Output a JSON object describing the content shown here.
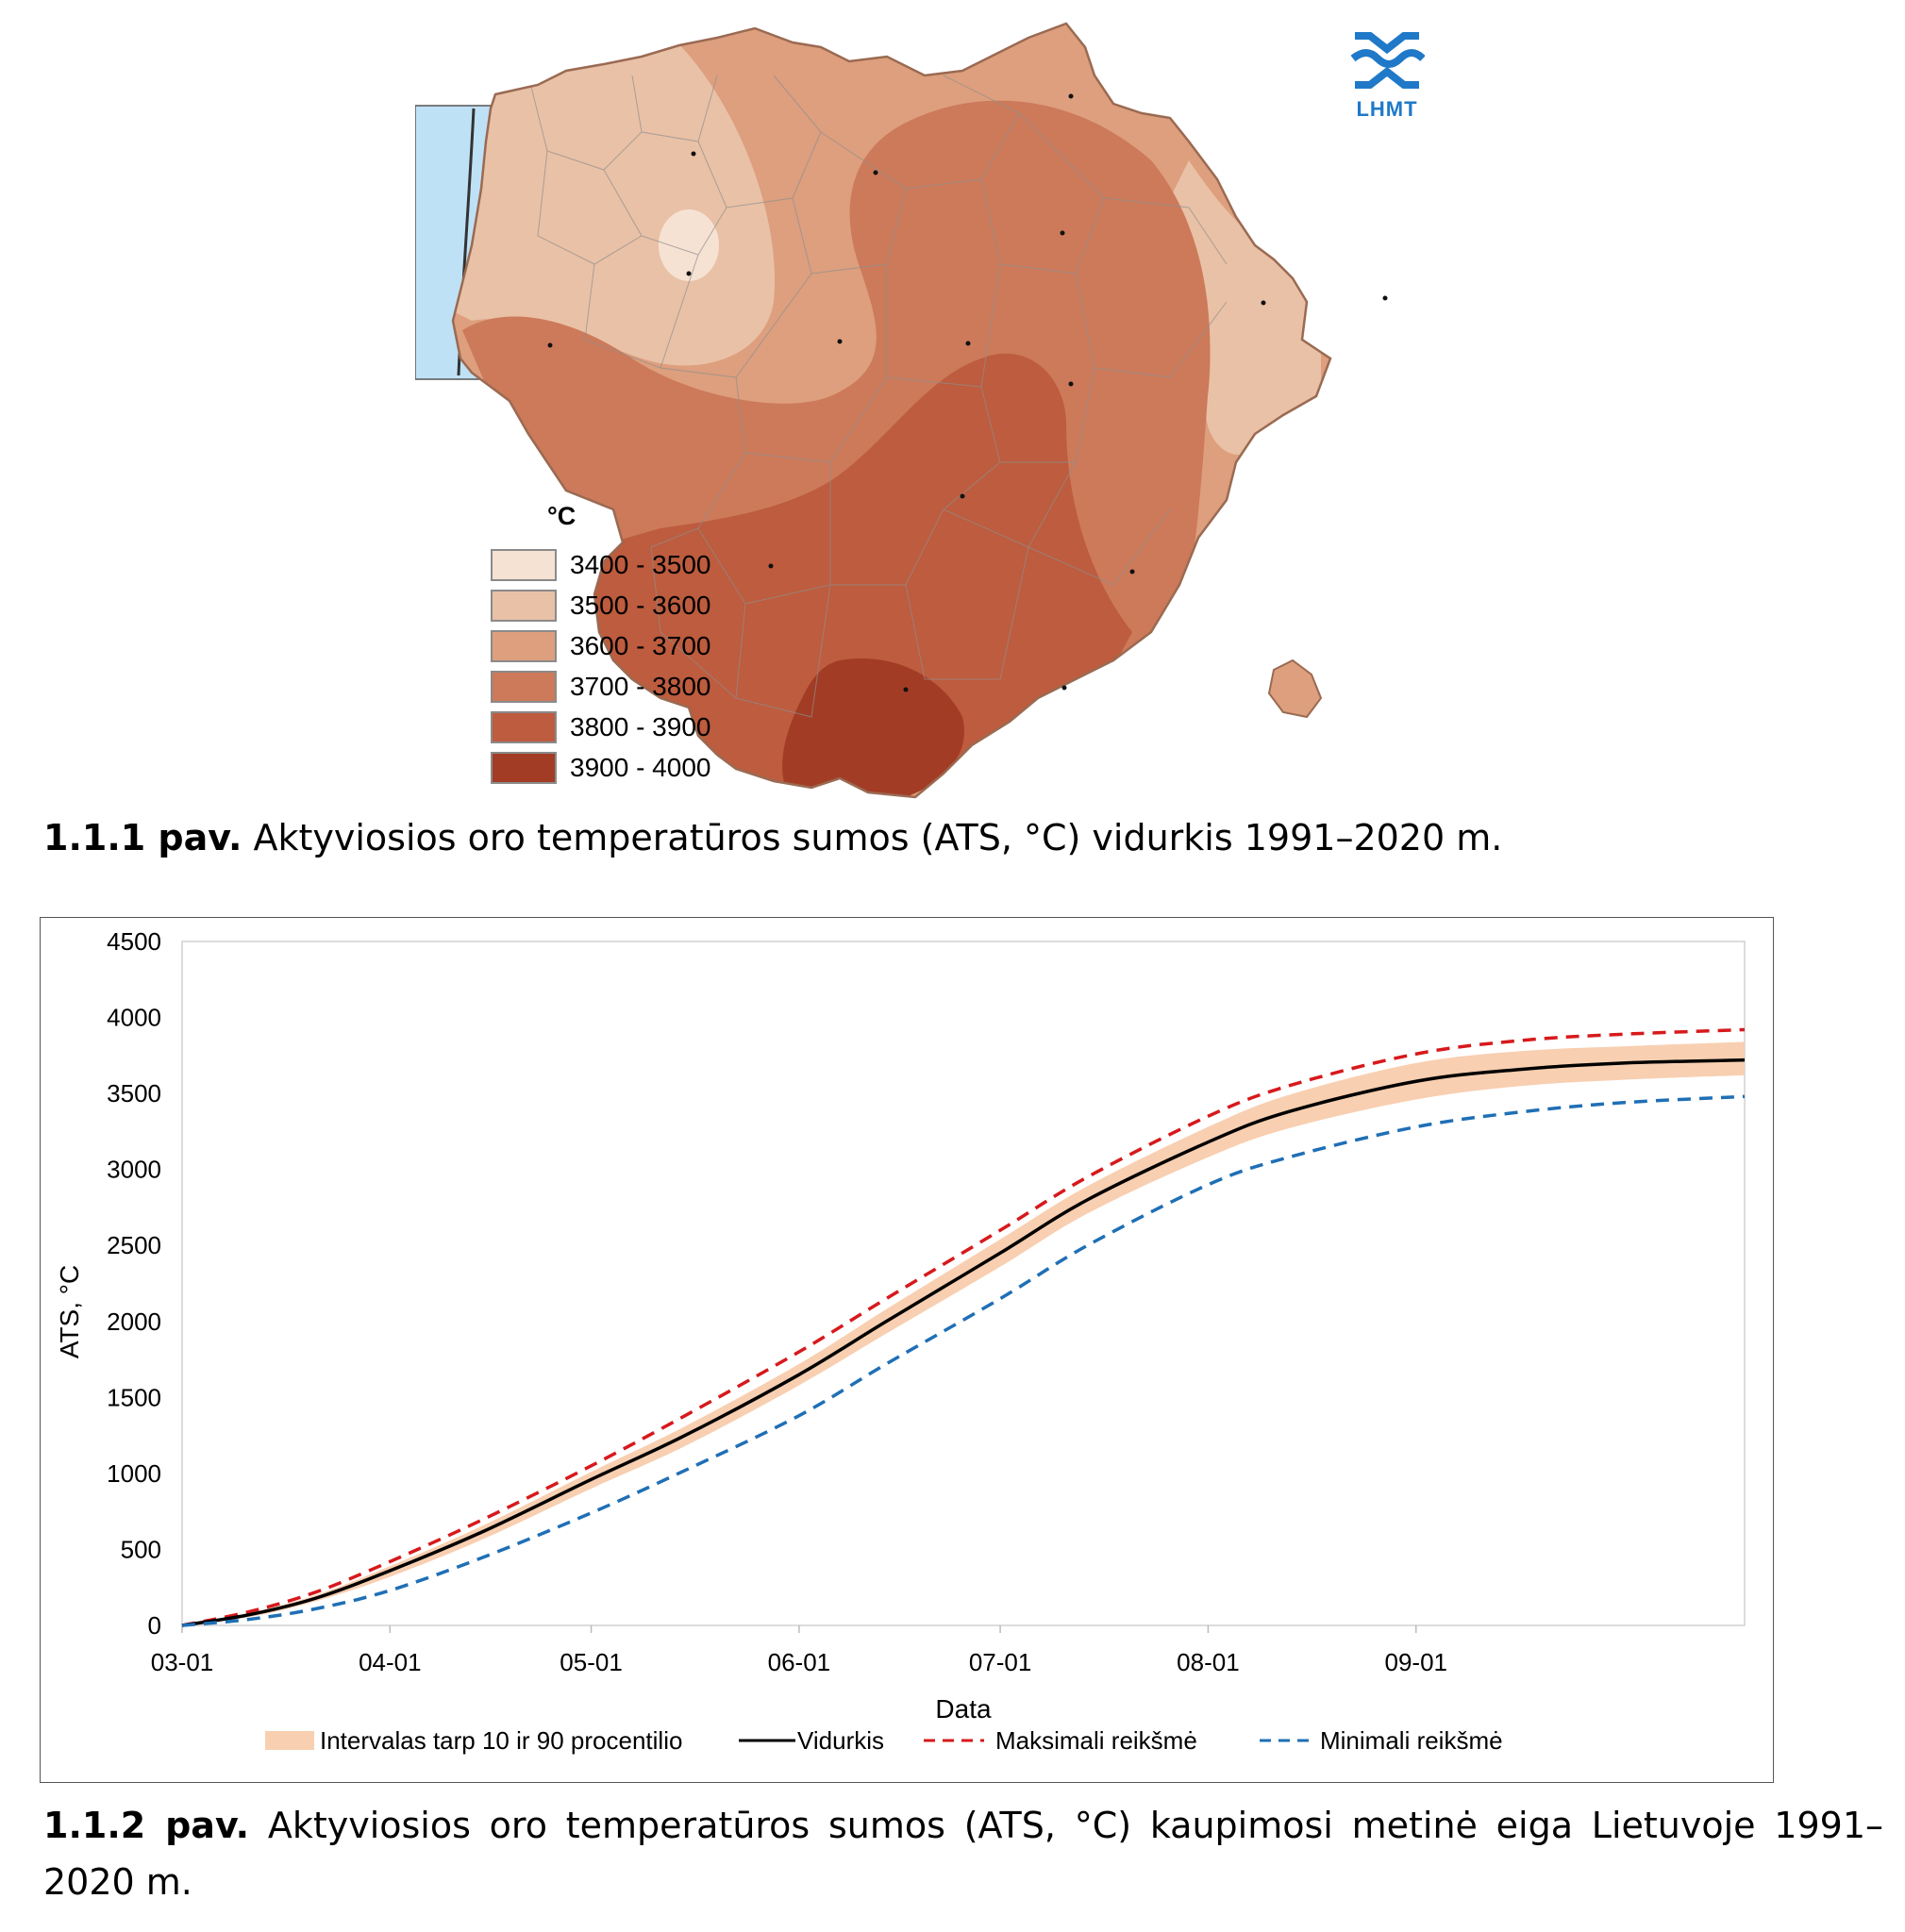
{
  "map": {
    "unit_label": "°C",
    "legend": [
      {
        "label": "3400 - 3500",
        "color": "#f6e2d3"
      },
      {
        "label": "3500 - 3600",
        "color": "#e9c1a6"
      },
      {
        "label": "3600 - 3700",
        "color": "#dd9f7e"
      },
      {
        "label": "3700 - 3800",
        "color": "#cc7a5a"
      },
      {
        "label": "3800 - 3900",
        "color": "#bd5c3e"
      },
      {
        "label": "3900 - 4000",
        "color": "#a33c25"
      }
    ],
    "sea_color": "#bfe1f6",
    "logo_text": "LHMT"
  },
  "caption1": {
    "number": "1.1.1 pav.",
    "text": "Aktyviosios oro temperatūros sumos (ATS, °C) vidurkis 1991–2020 m."
  },
  "caption2": {
    "number": "1.1.2 pav.",
    "text": "Aktyviosios oro temperatūros sumos (ATS, °C) kaupimosi metinė eiga Lietuvoje 1991–2020 m."
  },
  "chart_data": {
    "type": "line",
    "xlabel": "Data",
    "ylabel": "ATS, °C",
    "ylim": [
      0,
      4500
    ],
    "yticks": [
      0,
      500,
      1000,
      1500,
      2000,
      2500,
      3000,
      3500,
      4000,
      4500
    ],
    "xlim_days": [
      0,
      233
    ],
    "xticks": [
      {
        "day": 0,
        "label": "03-01"
      },
      {
        "day": 31,
        "label": "04-01"
      },
      {
        "day": 61,
        "label": "05-01"
      },
      {
        "day": 92,
        "label": "06-01"
      },
      {
        "day": 122,
        "label": "07-01"
      },
      {
        "day": 153,
        "label": "08-01"
      },
      {
        "day": 184,
        "label": "09-01"
      }
    ],
    "x_days": [
      0,
      10,
      20,
      31,
      45,
      61,
      75,
      92,
      105,
      122,
      135,
      153,
      165,
      184,
      200,
      215,
      233
    ],
    "series": [
      {
        "name": "Maksimali reikšmė",
        "style": "dashed",
        "color": "#d7191c",
        "values": [
          0,
          90,
          220,
          420,
          700,
          1050,
          1380,
          1800,
          2150,
          2600,
          2950,
          3350,
          3550,
          3760,
          3850,
          3890,
          3920
        ]
      },
      {
        "name": "Vidurkis",
        "style": "solid",
        "color": "#000000",
        "values": [
          0,
          70,
          180,
          360,
          620,
          960,
          1250,
          1650,
          2000,
          2450,
          2800,
          3180,
          3380,
          3580,
          3660,
          3700,
          3720
        ]
      },
      {
        "name": "Minimali reikšmė",
        "style": "dashed",
        "color": "#1f6fb5",
        "values": [
          0,
          40,
          110,
          230,
          450,
          740,
          1020,
          1380,
          1720,
          2150,
          2500,
          2900,
          3080,
          3280,
          3380,
          3440,
          3480
        ]
      }
    ],
    "band": {
      "name": "Intervalas tarp 10 ir 90 procentilio",
      "color": "#f8cfb1",
      "lower": [
        0,
        55,
        160,
        320,
        570,
        900,
        1180,
        1580,
        1920,
        2360,
        2710,
        3080,
        3270,
        3460,
        3550,
        3590,
        3620
      ],
      "upper": [
        0,
        82,
        200,
        390,
        660,
        1010,
        1310,
        1720,
        2080,
        2540,
        2890,
        3280,
        3490,
        3700,
        3780,
        3810,
        3840
      ]
    },
    "legend_position": "bottom"
  }
}
